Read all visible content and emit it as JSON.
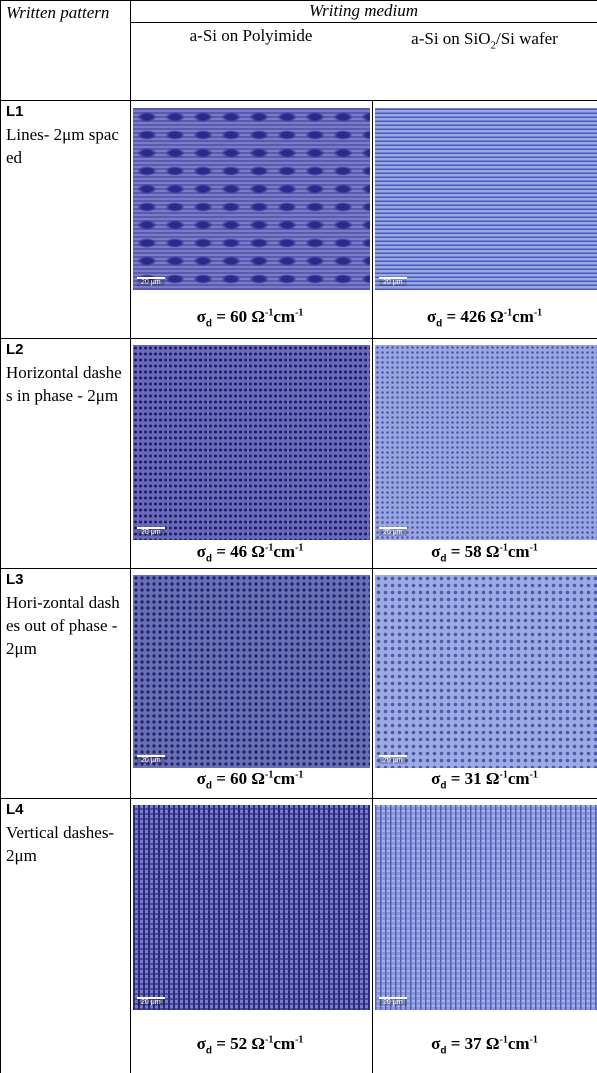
{
  "header": {
    "pattern_title": "Written pattern",
    "medium_title": "Writing medium",
    "columns": [
      {
        "text": "a-Si on Polyimide"
      },
      {
        "text": "a-Si on SiO",
        "sub": "2",
        "after": "/Si wafer"
      }
    ]
  },
  "conductivity": {
    "symbol": "σ",
    "sub": "d",
    "equals": "=",
    "unit1": "Ω",
    "exp": "-1",
    "unit2": "cm"
  },
  "rows": [
    {
      "id": "L1",
      "pattern": "Lines- 2μm spaced",
      "cells": [
        {
          "scale": "20 μm",
          "value": 60
        },
        {
          "scale": "20 μm",
          "value": 426
        }
      ]
    },
    {
      "id": "L2",
      "pattern": "Horizontal dashes in phase - 2μm",
      "cells": [
        {
          "scale": "20 μm",
          "value": 46
        },
        {
          "scale": "20 μm",
          "value": 58
        }
      ]
    },
    {
      "id": "L3",
      "pattern": "Hori-zontal dashes out of phase - 2μm",
      "cells": [
        {
          "scale": "20 μm",
          "value": 60
        },
        {
          "scale": "20 μm",
          "value": 31
        }
      ]
    },
    {
      "id": "L4",
      "pattern": "Vertical dashes- 2μm",
      "cells": [
        {
          "scale": "20 μm",
          "value": 52
        },
        {
          "scale": "20 μm",
          "value": 37
        }
      ]
    }
  ]
}
